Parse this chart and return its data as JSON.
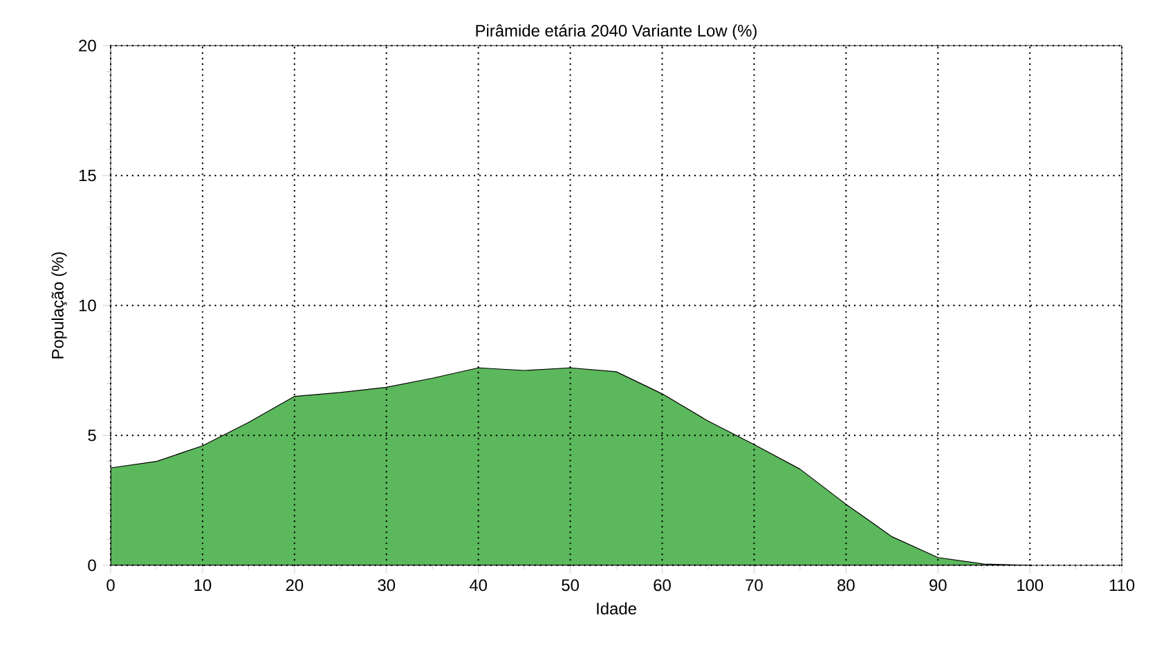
{
  "chart_data": {
    "type": "area",
    "title": "Pirâmide etária 2040 Variante Low  (%)",
    "xlabel": "Idade",
    "ylabel": "População (%)",
    "x": [
      0,
      5,
      10,
      15,
      20,
      25,
      30,
      35,
      40,
      45,
      50,
      55,
      60,
      65,
      70,
      75,
      80,
      85,
      90,
      95,
      100
    ],
    "series": [
      {
        "color": "#5cb85c",
        "values": [
          3.75,
          4.0,
          4.6,
          5.5,
          6.5,
          6.65,
          6.85,
          7.2,
          7.6,
          7.5,
          7.6,
          7.45,
          6.6,
          5.55,
          4.65,
          3.7,
          2.35,
          1.1,
          0.3,
          0.05,
          0
        ]
      }
    ],
    "xlim": [
      0,
      110
    ],
    "ylim": [
      0,
      20
    ],
    "xticks": [
      0,
      10,
      20,
      30,
      40,
      50,
      60,
      70,
      80,
      90,
      100,
      110
    ],
    "yticks": [
      0,
      5,
      10,
      15,
      20
    ],
    "grid": true
  }
}
